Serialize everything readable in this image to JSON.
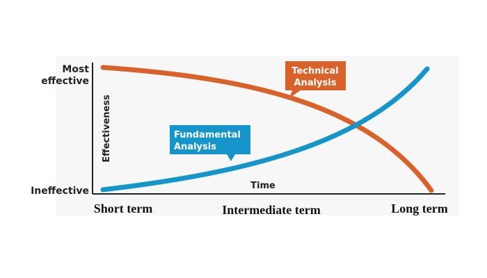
{
  "y_axis": {
    "top": [
      "Most",
      "effective"
    ],
    "bottom": "Ineffective",
    "title": "Effectiveness"
  },
  "x_axis": {
    "title": "Time",
    "labels": [
      "Short term",
      "Intermediate term",
      "Long term"
    ]
  },
  "callouts": [
    {
      "lines": [
        "Technical",
        "Analysis"
      ]
    },
    {
      "lines": [
        "Fundamental",
        "Analysis"
      ]
    }
  ]
}
